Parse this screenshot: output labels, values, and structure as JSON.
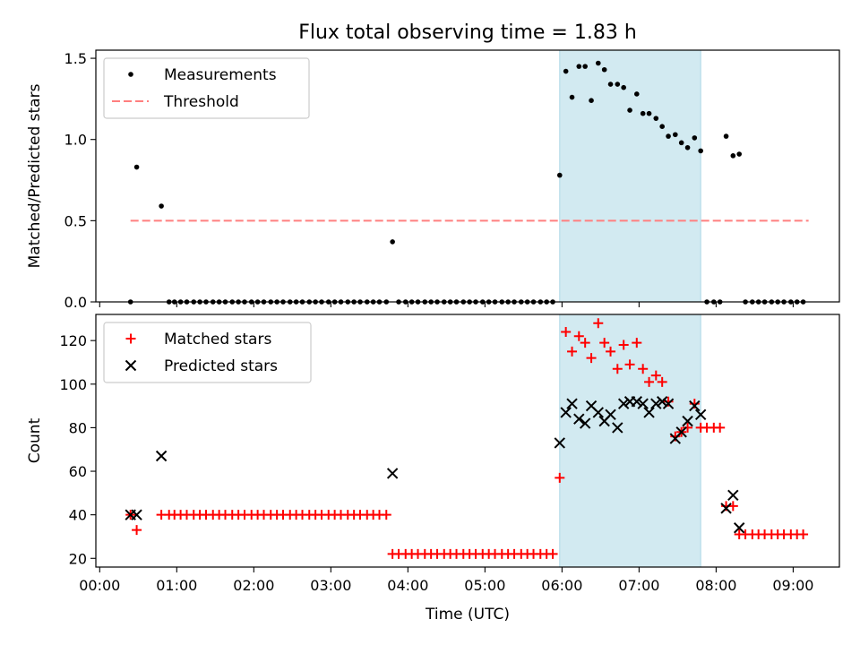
{
  "title": "Flux total observing time = 1.83 h",
  "colors": {
    "measurement": "#000000",
    "threshold": "#ff7f7f",
    "matched": "#ff0000",
    "predicted": "#000000",
    "span": "#add8e6"
  },
  "chart_data": [
    {
      "type": "scatter",
      "panel": "top",
      "ylabel": "Matched/Predicted stars",
      "ylim": [
        0,
        1.55
      ],
      "yticks": [
        0.0,
        0.5,
        1.0,
        1.5
      ],
      "ytick_labels": [
        "0.0",
        "0.5",
        "1.0",
        "1.5"
      ],
      "xlim": [
        -0.05,
        9.6
      ],
      "highlight_span": [
        5.97,
        7.8
      ],
      "legend_position": "top-left",
      "legend": [
        {
          "label": "Measurements",
          "kind": "dot"
        },
        {
          "label": "Threshold",
          "kind": "dashed-line"
        }
      ],
      "threshold": {
        "value": 0.5,
        "x_range": [
          0.4,
          9.2
        ]
      },
      "series": [
        {
          "name": "Measurements",
          "x": [
            0.4,
            0.48,
            0.8,
            0.9,
            0.97,
            1.05,
            1.13,
            1.22,
            1.3,
            1.38,
            1.47,
            1.55,
            1.63,
            1.72,
            1.8,
            1.88,
            1.97,
            2.05,
            2.13,
            2.22,
            2.3,
            2.38,
            2.47,
            2.55,
            2.63,
            2.72,
            2.8,
            2.88,
            2.97,
            3.05,
            3.13,
            3.22,
            3.3,
            3.38,
            3.47,
            3.55,
            3.63,
            3.72,
            3.8,
            3.88,
            3.97,
            4.05,
            4.13,
            4.22,
            4.3,
            4.38,
            4.47,
            4.55,
            4.63,
            4.72,
            4.8,
            4.88,
            4.97,
            5.05,
            5.13,
            5.22,
            5.3,
            5.38,
            5.47,
            5.55,
            5.63,
            5.72,
            5.8,
            5.88,
            5.97,
            6.05,
            6.13,
            6.22,
            6.3,
            6.38,
            6.47,
            6.55,
            6.63,
            6.72,
            6.8,
            6.88,
            6.97,
            7.05,
            7.13,
            7.22,
            7.3,
            7.38,
            7.47,
            7.55,
            7.63,
            7.72,
            7.8,
            7.88,
            7.97,
            8.05,
            8.13,
            8.22,
            8.3,
            8.38,
            8.47,
            8.55,
            8.63,
            8.72,
            8.8,
            8.88,
            8.97,
            9.05,
            9.13
          ],
          "y": [
            0.0,
            0.83,
            0.59,
            0.0,
            0.0,
            0.0,
            0.0,
            0.0,
            0.0,
            0.0,
            0.0,
            0.0,
            0.0,
            0.0,
            0.0,
            0.0,
            0.0,
            0.0,
            0.0,
            0.0,
            0.0,
            0.0,
            0.0,
            0.0,
            0.0,
            0.0,
            0.0,
            0.0,
            0.0,
            0.0,
            0.0,
            0.0,
            0.0,
            0.0,
            0.0,
            0.0,
            0.0,
            0.0,
            0.37,
            0.0,
            0.0,
            0.0,
            0.0,
            0.0,
            0.0,
            0.0,
            0.0,
            0.0,
            0.0,
            0.0,
            0.0,
            0.0,
            0.0,
            0.0,
            0.0,
            0.0,
            0.0,
            0.0,
            0.0,
            0.0,
            0.0,
            0.0,
            0.0,
            0.0,
            0.78,
            1.42,
            1.26,
            1.45,
            1.45,
            1.24,
            1.47,
            1.43,
            1.34,
            1.34,
            1.32,
            1.18,
            1.28,
            1.16,
            1.16,
            1.13,
            1.08,
            1.02,
            1.03,
            0.98,
            0.95,
            1.01,
            0.93,
            0.0,
            0.0,
            0.0,
            1.02,
            0.9,
            0.91,
            0.0,
            0.0,
            0.0,
            0.0,
            0.0,
            0.0,
            0.0,
            0.0,
            0.0,
            0.0
          ]
        }
      ]
    },
    {
      "type": "scatter",
      "panel": "bottom",
      "xlabel": "Time (UTC)",
      "ylabel": "Count",
      "ylim": [
        16,
        132
      ],
      "yticks": [
        20,
        40,
        60,
        80,
        100,
        120
      ],
      "ytick_labels": [
        "20",
        "40",
        "60",
        "80",
        "100",
        "120"
      ],
      "xlim": [
        -0.05,
        9.6
      ],
      "xticks": [
        0,
        1,
        2,
        3,
        4,
        5,
        6,
        7,
        8,
        9
      ],
      "xtick_labels": [
        "00:00",
        "01:00",
        "02:00",
        "03:00",
        "04:00",
        "05:00",
        "06:00",
        "07:00",
        "08:00",
        "09:00"
      ],
      "highlight_span": [
        5.97,
        7.8
      ],
      "legend_position": "top-left",
      "legend": [
        {
          "label": "Matched stars",
          "kind": "plus"
        },
        {
          "label": "Predicted stars",
          "kind": "cross"
        }
      ],
      "series": [
        {
          "name": "Matched stars",
          "marker": "plus",
          "x": [
            0.4,
            0.48,
            0.8,
            0.9,
            0.97,
            1.05,
            1.13,
            1.22,
            1.3,
            1.38,
            1.47,
            1.55,
            1.63,
            1.72,
            1.8,
            1.88,
            1.97,
            2.05,
            2.13,
            2.22,
            2.3,
            2.38,
            2.47,
            2.55,
            2.63,
            2.72,
            2.8,
            2.88,
            2.97,
            3.05,
            3.13,
            3.22,
            3.3,
            3.38,
            3.47,
            3.55,
            3.63,
            3.72,
            3.8,
            3.88,
            3.97,
            4.05,
            4.13,
            4.22,
            4.3,
            4.38,
            4.47,
            4.55,
            4.63,
            4.72,
            4.8,
            4.88,
            4.97,
            5.05,
            5.13,
            5.22,
            5.3,
            5.38,
            5.47,
            5.55,
            5.63,
            5.72,
            5.8,
            5.88,
            5.97,
            6.05,
            6.13,
            6.22,
            6.3,
            6.38,
            6.47,
            6.55,
            6.63,
            6.72,
            6.8,
            6.88,
            6.97,
            7.05,
            7.13,
            7.22,
            7.3,
            7.38,
            7.47,
            7.55,
            7.63,
            7.72,
            7.8,
            7.88,
            7.97,
            8.05,
            8.13,
            8.22,
            8.3,
            8.38,
            8.47,
            8.55,
            8.63,
            8.72,
            8.8,
            8.88,
            8.97,
            9.05,
            9.13
          ],
          "y": [
            40,
            33,
            40,
            40,
            40,
            40,
            40,
            40,
            40,
            40,
            40,
            40,
            40,
            40,
            40,
            40,
            40,
            40,
            40,
            40,
            40,
            40,
            40,
            40,
            40,
            40,
            40,
            40,
            40,
            40,
            40,
            40,
            40,
            40,
            40,
            40,
            40,
            40,
            22,
            22,
            22,
            22,
            22,
            22,
            22,
            22,
            22,
            22,
            22,
            22,
            22,
            22,
            22,
            22,
            22,
            22,
            22,
            22,
            22,
            22,
            22,
            22,
            22,
            22,
            57,
            124,
            115,
            122,
            119,
            112,
            128,
            119,
            115,
            107,
            118,
            109,
            119,
            107,
            101,
            104,
            101,
            92,
            76,
            78,
            80,
            91,
            80,
            80,
            80,
            80,
            44,
            44,
            31,
            31,
            31,
            31,
            31,
            31,
            31,
            31,
            31,
            31,
            31
          ]
        },
        {
          "name": "Predicted stars",
          "marker": "cross",
          "x": [
            0.4,
            0.48,
            0.8,
            3.8,
            5.97,
            6.05,
            6.13,
            6.22,
            6.3,
            6.38,
            6.47,
            6.55,
            6.63,
            6.72,
            6.8,
            6.88,
            6.97,
            7.05,
            7.13,
            7.22,
            7.3,
            7.38,
            7.47,
            7.55,
            7.63,
            7.72,
            7.8,
            8.13,
            8.22,
            8.3
          ],
          "y": [
            40,
            40,
            67,
            59,
            73,
            87,
            91,
            84,
            82,
            90,
            87,
            83,
            86,
            80,
            91,
            92,
            92,
            91,
            87,
            91,
            92,
            91,
            75,
            78,
            83,
            90,
            86,
            43,
            49,
            34
          ]
        }
      ]
    }
  ]
}
